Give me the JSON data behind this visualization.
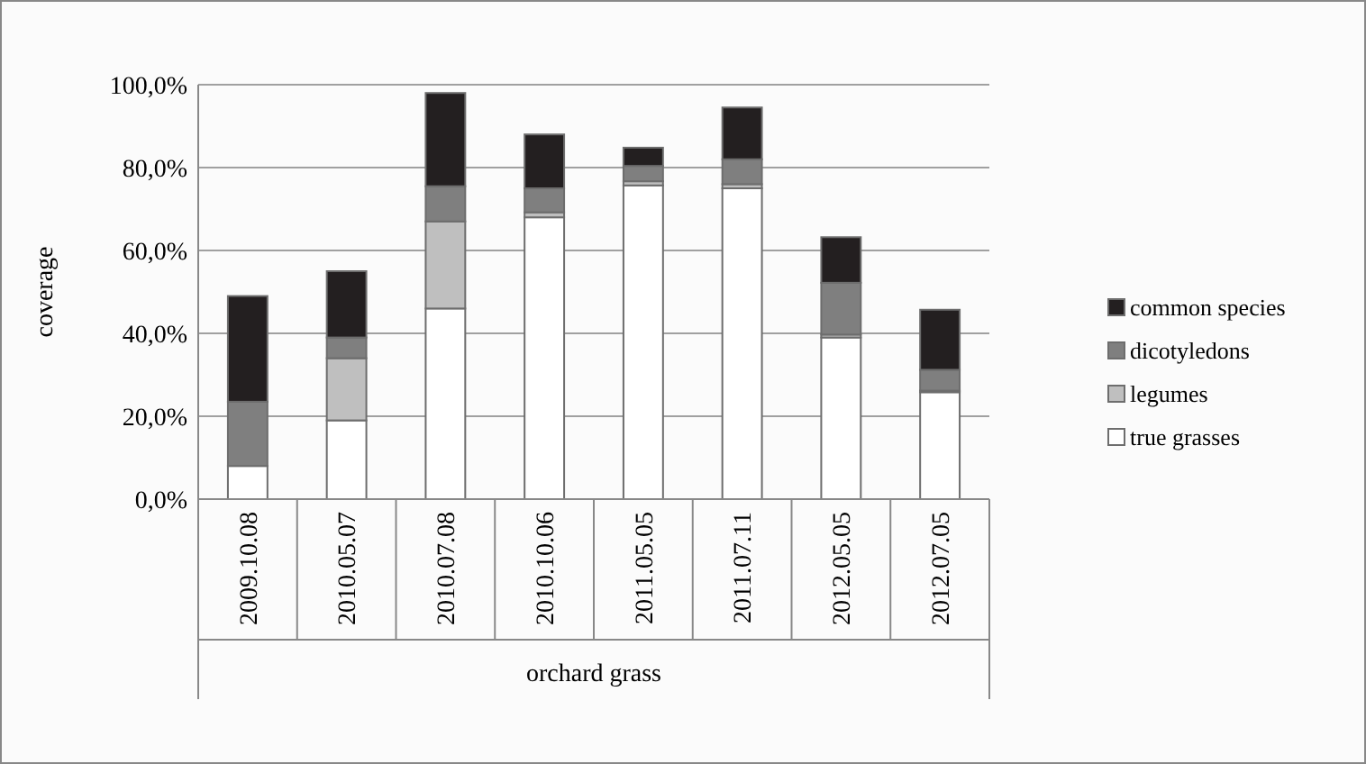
{
  "chart_data": {
    "type": "bar",
    "stacked": true,
    "ylabel": "coverage",
    "xlabel": "orchard grass",
    "categories": [
      "2009.10.08",
      "2010.05.07",
      "2010.07.08",
      "2010.10.06",
      "2011.05.05",
      "2011.07.11",
      "2012.05.05",
      "2012.07.05"
    ],
    "series": [
      {
        "name": "true grasses",
        "color": "#ffffff",
        "values": [
          8,
          19,
          46,
          68,
          75.7,
          75,
          39,
          25.8
        ]
      },
      {
        "name": "legumes",
        "color": "#bfbfbf",
        "values": [
          null,
          15,
          21,
          1.2,
          1,
          1,
          0.7,
          0.4
        ]
      },
      {
        "name": "dicotyledons",
        "color": "#7f7f7f",
        "values": [
          15.5,
          5,
          8.5,
          5.8,
          3.7,
          6,
          12.5,
          5
        ]
      },
      {
        "name": "common species",
        "color": "#231f20",
        "values": [
          25.5,
          16,
          22.5,
          13,
          4.4,
          12.5,
          11,
          14.5
        ]
      }
    ],
    "ylim": [
      0,
      100
    ],
    "yticks": [
      {
        "value": 0,
        "label": "0,0%"
      },
      {
        "value": 20,
        "label": "20,0%"
      },
      {
        "value": 40,
        "label": "40,0%"
      },
      {
        "value": 60,
        "label": "60,0%"
      },
      {
        "value": 80,
        "label": "80,0%"
      },
      {
        "value": 100,
        "label": "100,0%"
      }
    ],
    "grid": "y",
    "legend": "right"
  }
}
